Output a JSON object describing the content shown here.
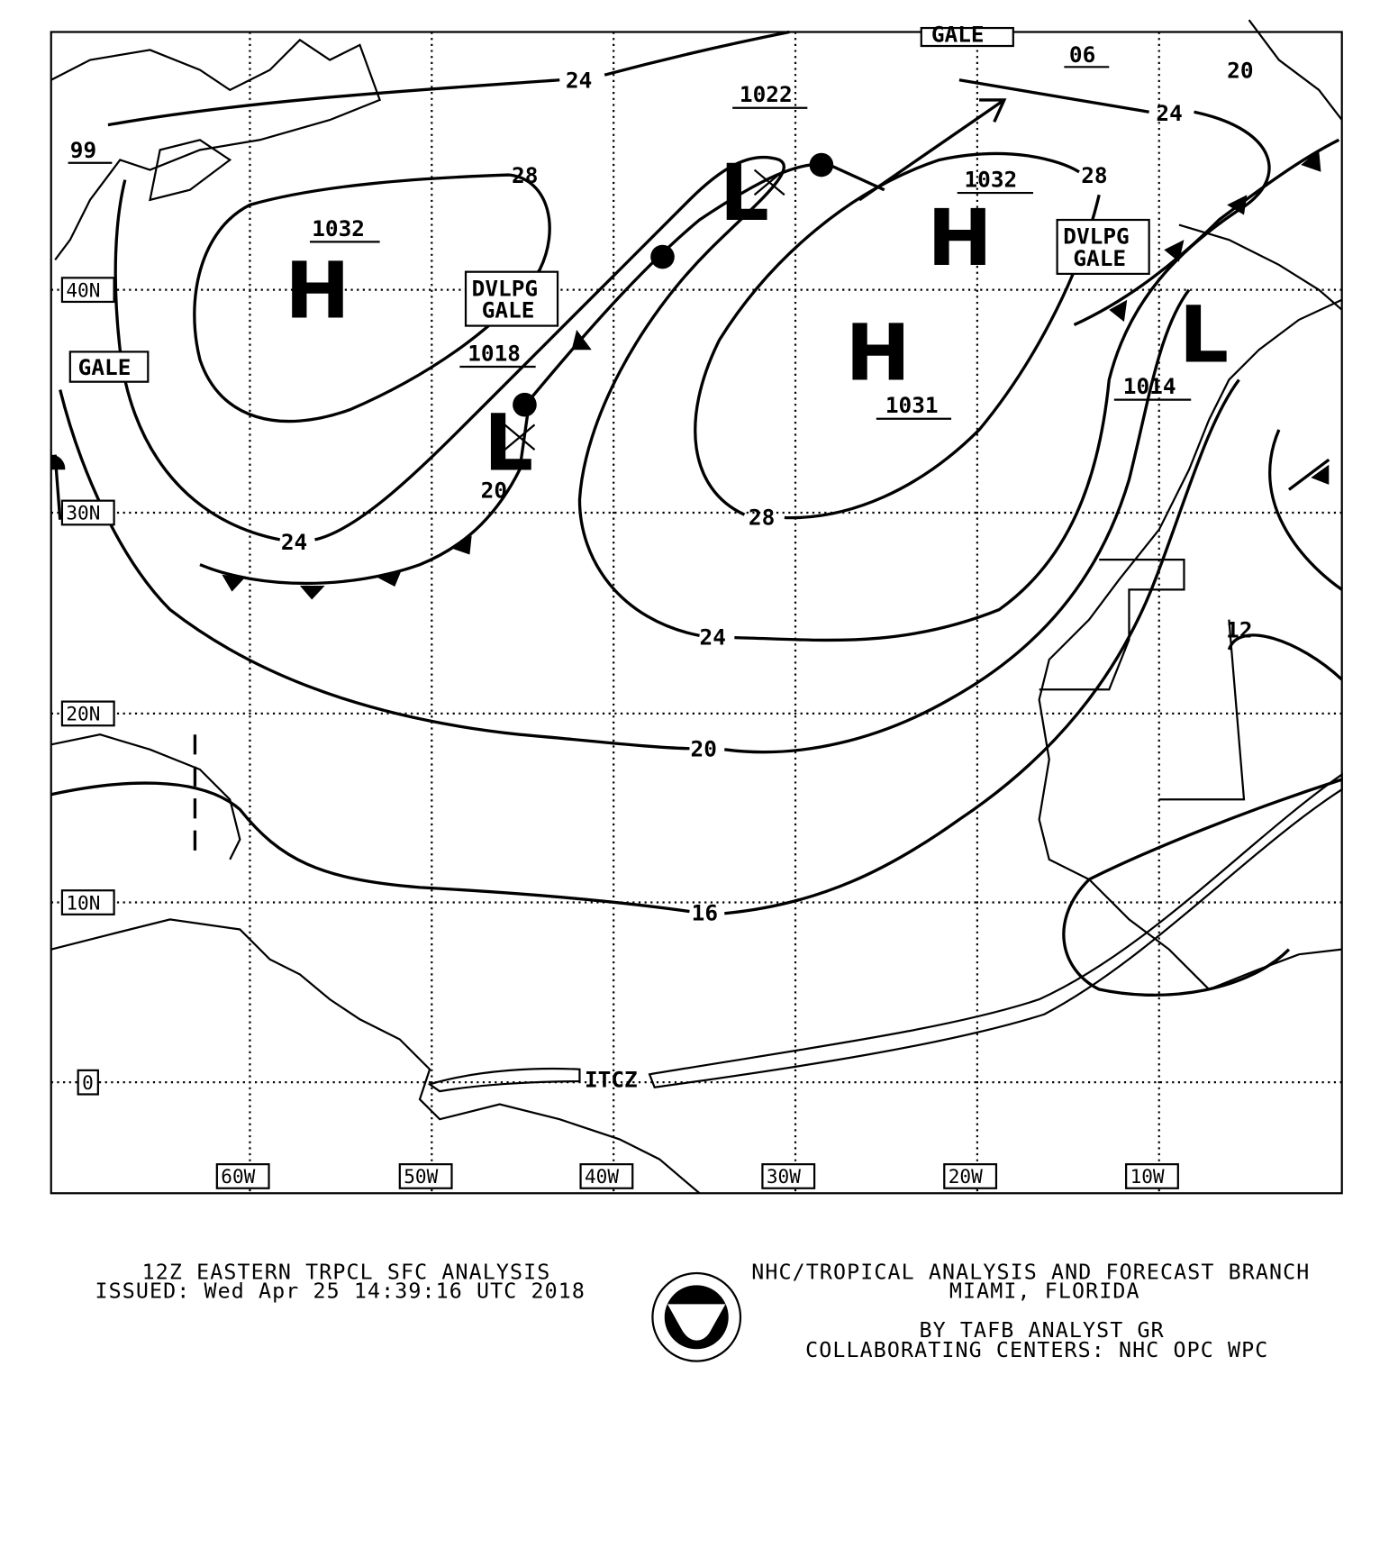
{
  "map": {
    "grid_labels": {
      "lat": [
        "40N",
        "30N",
        "20N",
        "10N",
        "0"
      ],
      "lon": [
        "60W",
        "50W",
        "40W",
        "30W",
        "20W",
        "10W"
      ]
    },
    "isobar_labels": [
      "24",
      "28",
      "24",
      "28",
      "28",
      "20",
      "24",
      "24",
      "20",
      "16",
      "12",
      "20",
      "99",
      "06"
    ],
    "pressure_centers": [
      {
        "type": "H",
        "value": "1032"
      },
      {
        "type": "L",
        "value": "1018"
      },
      {
        "type": "L",
        "value": "1022"
      },
      {
        "type": "H",
        "value": "1032"
      },
      {
        "type": "H",
        "value": "1031"
      },
      {
        "type": "L",
        "value": "1014"
      }
    ],
    "warnings": [
      {
        "line1": "GALE",
        "line2": ""
      },
      {
        "line1": "DVLPG",
        "line2": "GALE"
      },
      {
        "line1": "DVLPG",
        "line2": "GALE"
      },
      {
        "line1": "GALE",
        "line2": ""
      }
    ],
    "itcz_label": "ITCZ"
  },
  "footer": {
    "title": "12Z EASTERN TRPCL SFC ANALYSIS",
    "issued": "ISSUED: Wed Apr 25 14:39:16 UTC 2018",
    "agency": "NHC/TROPICAL ANALYSIS AND FORECAST BRANCH",
    "location": "MIAMI,  FLORIDA",
    "analyst": "BY TAFB ANALYST  GR",
    "collab": "COLLABORATING CENTERS: NHC OPC WPC",
    "logo_text": "NOAA"
  }
}
